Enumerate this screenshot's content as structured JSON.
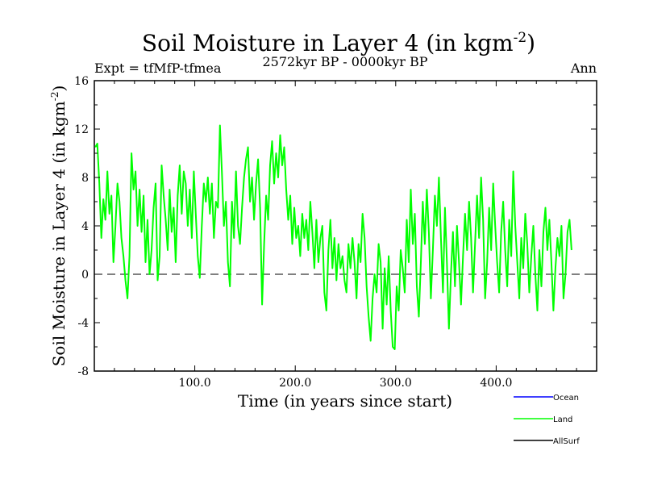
{
  "chart_data": {
    "type": "line",
    "title": "Soil Moisture in Layer 4 (in kgm",
    "title_sup": "-2",
    "title_close": ")",
    "subtitle": "2572kyr BP - 0000kyr BP",
    "expt_label": "Expt = tfMfP-tfmea",
    "season_label": "Ann",
    "xlabel": "Time (in years since start)",
    "ylabel": "Soil Moisture in Layer 4 (in kgm",
    "ylabel_sup": "-2",
    "ylabel_close": ")",
    "xlim": [
      0,
      500
    ],
    "ylim": [
      -8,
      16
    ],
    "x_ticks": [
      100,
      200,
      300,
      400
    ],
    "x_tick_labels": [
      "100.0",
      "200.0",
      "300.0",
      "400.0"
    ],
    "y_ticks": [
      -8,
      -4,
      0,
      4,
      8,
      12,
      16
    ],
    "y_tick_labels": [
      "-8",
      "-4",
      "0",
      "4",
      "8",
      "12",
      "16"
    ],
    "zero_line": 0,
    "legend": [
      {
        "name": "Ocean",
        "color": "#0000ff"
      },
      {
        "name": "Land",
        "color": "#00ff00"
      },
      {
        "name": "AllSurf",
        "color": "#000000"
      }
    ],
    "series": [
      {
        "name": "Land",
        "color": "#00ff00",
        "x_start": 1,
        "x_step": 2,
        "values": [
          10.5,
          10.8,
          7.5,
          3.0,
          6.2,
          4.5,
          8.5,
          5.0,
          6.5,
          1.0,
          4.0,
          7.5,
          6.0,
          3.0,
          1.5,
          -0.5,
          -2.0,
          1.5,
          10.0,
          7.0,
          8.5,
          4.0,
          7.0,
          3.5,
          6.5,
          1.0,
          4.5,
          0.0,
          2.0,
          5.5,
          7.5,
          -0.5,
          1.5,
          9.0,
          6.5,
          4.5,
          2.0,
          7.0,
          3.5,
          5.5,
          1.0,
          6.5,
          9.0,
          5.0,
          8.5,
          7.5,
          4.0,
          7.0,
          3.0,
          8.5,
          5.0,
          1.5,
          -0.3,
          4.0,
          7.5,
          6.0,
          8.0,
          5.0,
          7.5,
          3.0,
          6.0,
          5.5,
          12.3,
          8.5,
          4.0,
          6.0,
          1.0,
          -1.0,
          6.0,
          3.0,
          8.5,
          4.0,
          2.5,
          5.5,
          8.0,
          9.5,
          10.5,
          6.0,
          8.0,
          4.5,
          7.5,
          9.5,
          5.5,
          -2.5,
          2.5,
          6.5,
          4.5,
          9.0,
          11.0,
          7.5,
          10.0,
          8.0,
          11.5,
          9.0,
          10.5,
          7.0,
          4.5,
          6.5,
          2.5,
          5.5,
          3.0,
          4.0,
          1.5,
          5.0,
          3.0,
          4.5,
          2.0,
          6.0,
          3.5,
          0.5,
          4.5,
          1.0,
          3.0,
          4.0,
          -1.5,
          -3.0,
          2.0,
          4.5,
          0.5,
          3.0,
          -0.5,
          2.5,
          0.5,
          1.5,
          -0.5,
          -1.5,
          2.5,
          0.5,
          3.0,
          1.0,
          -2.0,
          2.5,
          1.0,
          5.0,
          3.0,
          -1.0,
          -3.5,
          -5.5,
          -2.0,
          0.0,
          -1.5,
          2.5,
          1.0,
          -4.5,
          0.5,
          -2.5,
          1.5,
          -3.0,
          -6.0,
          -6.2,
          -1.0,
          -3.0,
          2.0,
          0.5,
          -1.5,
          4.5,
          1.0,
          7.0,
          2.5,
          5.0,
          -1.0,
          -3.5,
          1.0,
          6.0,
          2.5,
          7.0,
          3.5,
          -2.0,
          2.0,
          6.5,
          4.0,
          8.0,
          3.0,
          -1.5,
          5.5,
          1.0,
          -4.5,
          0.0,
          3.5,
          -1.0,
          4.0,
          1.0,
          -2.5,
          1.5,
          5.0,
          2.0,
          6.0,
          3.0,
          -1.5,
          2.5,
          6.5,
          3.0,
          8.0,
          4.5,
          -2.0,
          1.0,
          5.5,
          2.0,
          7.5,
          4.0,
          1.0,
          -1.5,
          3.5,
          6.0,
          2.0,
          -1.0,
          4.5,
          1.5,
          8.5,
          4.0,
          1.0,
          -2.0,
          3.0,
          0.5,
          5.0,
          2.5,
          -1.5,
          1.5,
          4.0,
          0.0,
          -3.0,
          2.0,
          -1.0,
          3.5,
          5.5,
          2.0,
          4.5,
          1.0,
          -3.0,
          0.5,
          3.0,
          1.5,
          4.0,
          -2.0,
          0.0,
          3.5,
          4.5,
          2.0
        ]
      }
    ]
  }
}
